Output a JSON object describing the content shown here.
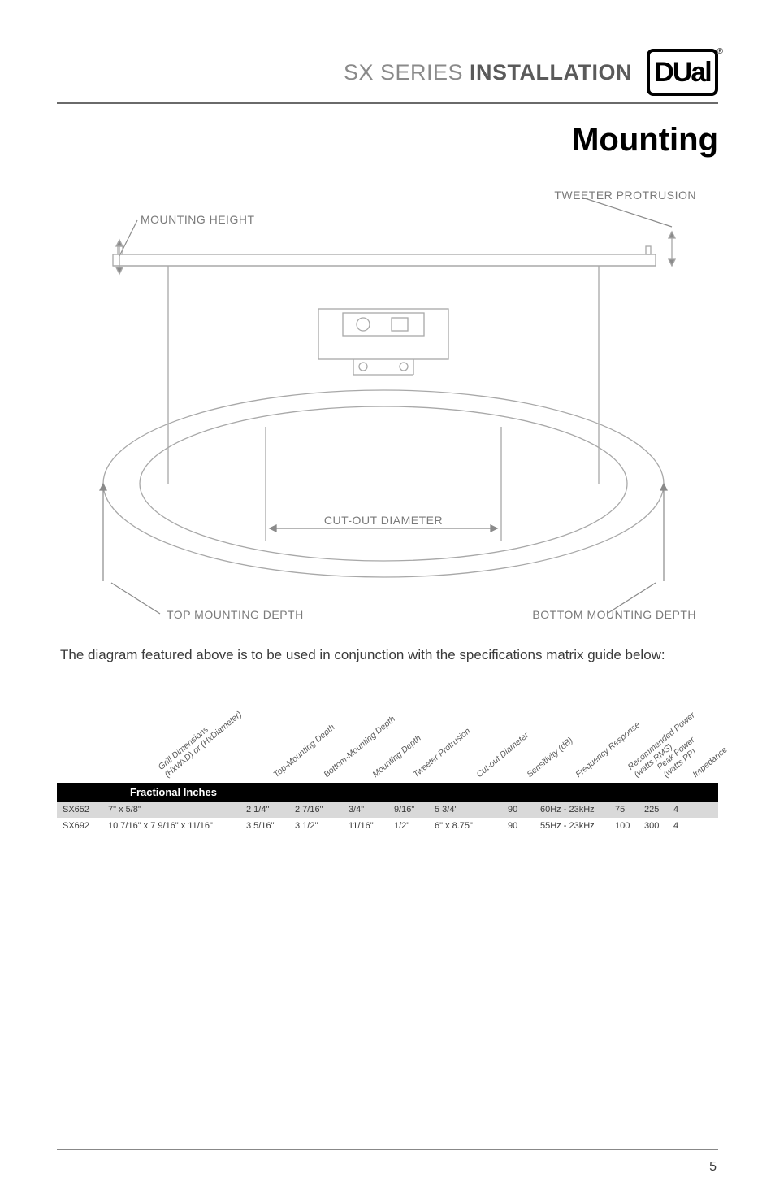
{
  "header": {
    "series": "SX SERIES",
    "doc_type": "INSTALLATION",
    "brand": "Dual",
    "logo_glyph": "DUal",
    "registered": "®"
  },
  "section_title": "Mounting",
  "diagram": {
    "labels": {
      "tweeter_protrusion": "TWEETER PROTRUSION",
      "mounting_height": "MOUNTING HEIGHT",
      "cut_out_diameter": "CUT-OUT DIAMETER",
      "top_mounting_depth": "TOP MOUNTING DEPTH",
      "bottom_mounting_depth": "BOTTOM MOUNTING DEPTH"
    },
    "colors": {
      "stroke": "#b8b8b8",
      "stroke_dark": "#8a8a8a",
      "background": "#ffffff"
    }
  },
  "caption": "The diagram featured above is to be used in conjunction with the specifications matrix guide below:",
  "spec_table": {
    "headers": [
      {
        "label": "Grill Dimensions\n(HxWxD) or (HxDiameter)",
        "x": 138
      },
      {
        "label": "Top-Mounting Depth",
        "x": 272
      },
      {
        "label": "Bottom-Mounting Depth",
        "x": 334
      },
      {
        "label": "Mounting Depth",
        "x": 394
      },
      {
        "label": "Tweeter Protrusion",
        "x": 444
      },
      {
        "label": "Cut-out Diameter",
        "x": 522
      },
      {
        "label": "Sensitivity (dB)",
        "x": 584
      },
      {
        "label": "Frequency Response",
        "x": 644
      },
      {
        "label": "Recommended Power\n(watts RMS)",
        "x": 716
      },
      {
        "label": "Peak Power\n(watts PP)",
        "x": 752
      },
      {
        "label": "Impedance",
        "x": 788
      }
    ],
    "group_label": "Fractional Inches",
    "rows": [
      {
        "model": "SX652",
        "grill": "7\" x 5/8\"",
        "top_depth": "2 1/4\"",
        "bottom_depth": "2 7/16\"",
        "mount_depth": "3/4\"",
        "tweeter": "9/16\"",
        "cutout": "5 3/4\"",
        "sensitivity": "90",
        "freq": "60Hz - 23kHz",
        "rms": "75",
        "peak": "225",
        "impedance": "4"
      },
      {
        "model": "SX692",
        "grill": "10 7/16\" x 7 9/16\" x 11/16\"",
        "top_depth": "3 5/16\"",
        "bottom_depth": "3 1/2\"",
        "mount_depth": "11/16\"",
        "tweeter": "1/2\"",
        "cutout": "6\" x 8.75\"",
        "sensitivity": "90",
        "freq": "55Hz - 23kHz",
        "rms": "100",
        "peak": "300",
        "impedance": "4"
      }
    ],
    "colors": {
      "header_bg": "#000000",
      "header_fg": "#ffffff",
      "row_even_bg": "#d9d9d9",
      "row_odd_bg": "#ffffff"
    }
  },
  "page_number": "5"
}
